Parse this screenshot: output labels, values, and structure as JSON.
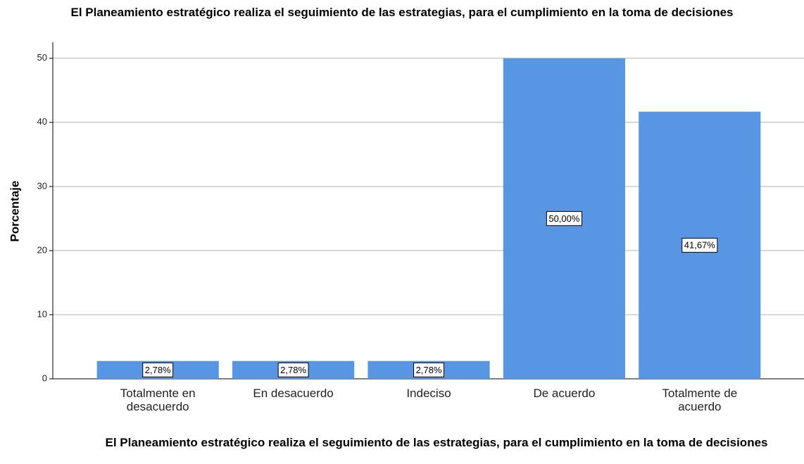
{
  "chart_data": {
    "type": "bar",
    "title": "El Planeamiento estratégico realiza el seguimiento de las estrategias, para el cumplimiento en la toma de decisiones",
    "x_label": "El Planeamiento estratégico realiza el seguimiento de las estrategias, para el cumplimiento en la toma de decisiones",
    "y_label": "Porcentaje",
    "categories": [
      "Totalmente en desacuerdo",
      "En desacuerdo",
      "Indeciso",
      "De acuerdo",
      "Totalmente de acuerdo"
    ],
    "values": [
      2.78,
      2.78,
      2.78,
      50.0,
      41.67
    ],
    "value_labels": [
      "2,78%",
      "2,78%",
      "2,78%",
      "50,00%",
      "41,67%"
    ],
    "color": "#5896e4",
    "ylim": [
      0,
      52.5
    ],
    "yticks": [
      0,
      10,
      20,
      30,
      40,
      50
    ],
    "grid": true
  }
}
